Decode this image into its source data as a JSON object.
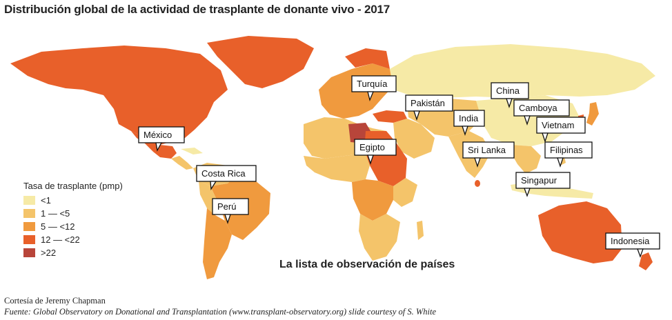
{
  "title": "Distribución global de la actividad de trasplante de donante vivo - 2017",
  "legend": {
    "title": "Tasa de trasplante (pmp)",
    "items": [
      {
        "label": "<1",
        "color": "#f6eaa6"
      },
      {
        "label": "1 — <5",
        "color": "#f4c46a"
      },
      {
        "label": "5 — <12",
        "color": "#f09a3e"
      },
      {
        "label": "12 — <22",
        "color": "#e8602a"
      },
      {
        "label": ">22",
        "color": "#b8453a"
      }
    ]
  },
  "callouts": [
    "México",
    "Costa Rica",
    "Perú",
    "Turquía",
    "Egipto",
    "Pakistán",
    "India",
    "Sri Lanka",
    "China",
    "Camboya",
    "Vietnam",
    "Filipinas",
    "Singapur",
    "Indonesia"
  ],
  "subtitle": "La lista de observación de países",
  "credit": "Cortesía de Jeremy Chapman",
  "source": "Fuente: Global Observatory on Donational and Transplantation (www.transplant-observatory.org) slide courtesy of S. White"
}
